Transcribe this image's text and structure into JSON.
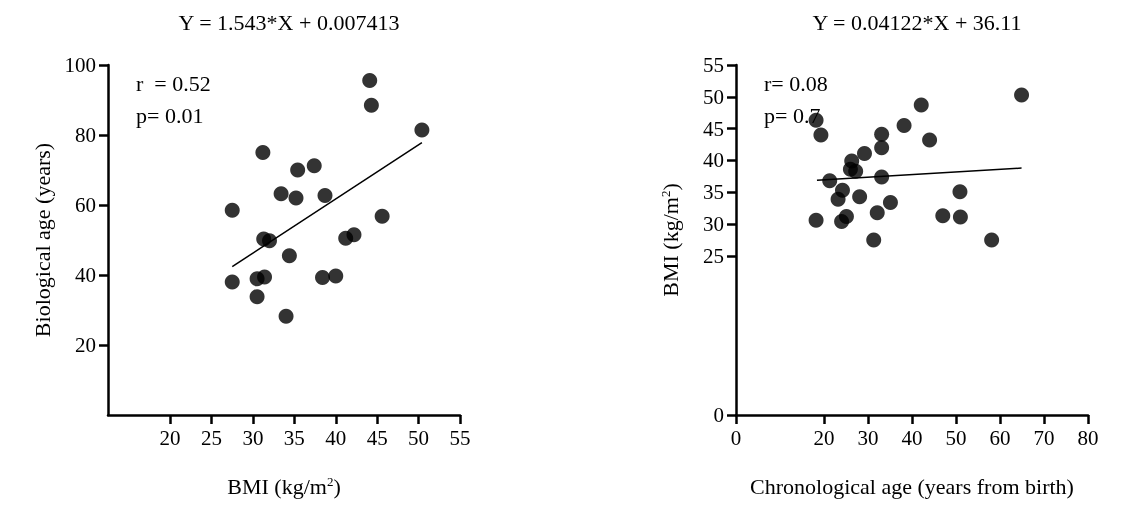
{
  "chart_data": [
    {
      "type": "scatter",
      "title": "Y = 1.543*X + 0.007413",
      "xlabel": "BMI (kg/m$^{2}$)",
      "ylabel": "Biological age (years)",
      "annotations": [
        "r  = 0.52",
        "p= 0.01"
      ],
      "xlim": [
        12.5,
        55
      ],
      "xticks": [
        20,
        25,
        30,
        35,
        40,
        45,
        50,
        55
      ],
      "ylim": [
        0,
        100
      ],
      "yticks": [
        20,
        40,
        60,
        80,
        100
      ],
      "marker": "circle",
      "grid": false,
      "series": [
        {
          "type": "scatter",
          "color": "#000000",
          "x": [
            44.1,
            44.3,
            50.4,
            31.2,
            35.4,
            37.4,
            33.4,
            35.2,
            38.7,
            27.5,
            45.6,
            41.2,
            42.2,
            31.3,
            32.0,
            34.4,
            27.5,
            30.5,
            31.4,
            38.4,
            40.0,
            30.5,
            34.0
          ],
          "values": [
            95.6,
            88.5,
            81.4,
            75.0,
            70.0,
            71.2,
            63.2,
            62.0,
            62.7,
            58.5,
            56.8,
            50.5,
            51.5,
            50.3,
            49.8,
            45.5,
            38.0,
            38.9,
            39.4,
            39.3,
            39.7,
            33.8,
            28.2
          ]
        },
        {
          "type": "line",
          "color": "#000000",
          "marker": "none",
          "line_style": "solid",
          "x": [
            27.5,
            50.4
          ],
          "values": [
            42.4,
            77.8
          ]
        }
      ]
    },
    {
      "type": "scatter",
      "title": "Y = 0.04122*X + 36.11",
      "xlabel": "Chronological age (years from birth)",
      "ylabel": "BMI (kg/m$^{2}$)",
      "annotations": [
        "r= 0.08",
        "p= 0.7"
      ],
      "xlim": [
        0,
        80
      ],
      "xticks": [
        0,
        20,
        30,
        40,
        50,
        60,
        70,
        80
      ],
      "ylim": [
        0,
        55
      ],
      "yticks": [
        0,
        25,
        30,
        35,
        40,
        45,
        50,
        55
      ],
      "marker": "circle",
      "grid": false,
      "series": [
        {
          "type": "scatter",
          "color": "#000000",
          "x": [
            64.9,
            42.1,
            18.2,
            19.3,
            38.2,
            33.1,
            44.0,
            33.1,
            29.2,
            26.3,
            26.0,
            27.2,
            21.3,
            33.1,
            24.2,
            50.9,
            23.2,
            28.1,
            35.1,
            32.1,
            18.2,
            24.0,
            25.1,
            47.0,
            51.0,
            31.3,
            58.1
          ],
          "values": [
            50.3,
            48.7,
            46.3,
            44.0,
            45.5,
            44.1,
            43.2,
            42.0,
            41.1,
            39.9,
            38.6,
            38.3,
            36.8,
            37.4,
            35.3,
            35.1,
            33.9,
            34.3,
            33.4,
            31.8,
            30.6,
            30.4,
            31.2,
            31.3,
            31.1,
            27.5,
            27.5
          ]
        },
        {
          "type": "line",
          "color": "#000000",
          "marker": "none",
          "line_style": "solid",
          "x": [
            18.4,
            64.9
          ],
          "values": [
            36.9,
            38.8
          ]
        }
      ]
    }
  ]
}
